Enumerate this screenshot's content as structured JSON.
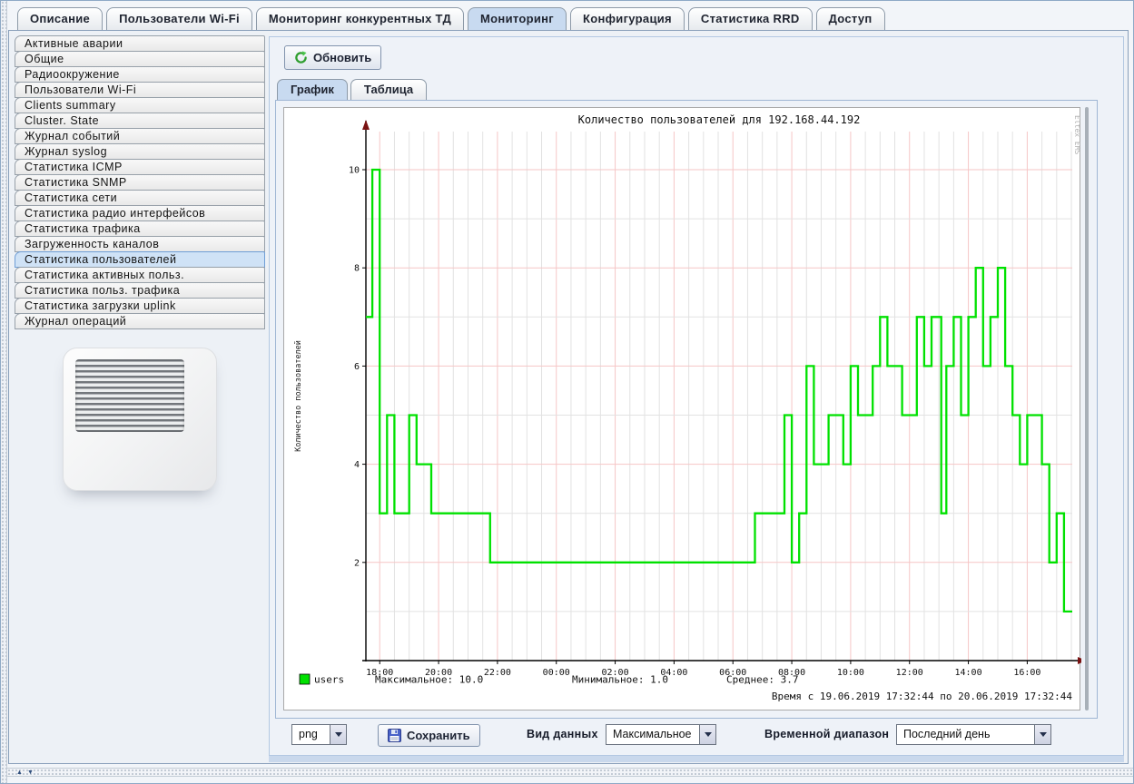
{
  "main_tabs": [
    {
      "label": "Описание",
      "selected": false
    },
    {
      "label": "Пользователи Wi-Fi",
      "selected": false
    },
    {
      "label": "Мониторинг конкурентных ТД",
      "selected": false
    },
    {
      "label": "Мониторинг",
      "selected": true
    },
    {
      "label": "Конфигурация",
      "selected": false
    },
    {
      "label": "Статистика RRD",
      "selected": false
    },
    {
      "label": "Доступ",
      "selected": false
    }
  ],
  "sidebar": {
    "items": [
      {
        "label": "Активные аварии",
        "selected": false
      },
      {
        "label": "Общие",
        "selected": false
      },
      {
        "label": "Радиоокружение",
        "selected": false
      },
      {
        "label": "Пользователи Wi-Fi",
        "selected": false
      },
      {
        "label": "Clients summary",
        "selected": false
      },
      {
        "label": "Cluster. State",
        "selected": false
      },
      {
        "label": "Журнал событий",
        "selected": false
      },
      {
        "label": "Журнал syslog",
        "selected": false
      },
      {
        "label": "Статистика ICMP",
        "selected": false
      },
      {
        "label": "Статистика SNMP",
        "selected": false
      },
      {
        "label": "Статистика сети",
        "selected": false
      },
      {
        "label": "Статистика радио интерфейсов",
        "selected": false
      },
      {
        "label": "Статистика трафика",
        "selected": false
      },
      {
        "label": "Загруженность каналов",
        "selected": false
      },
      {
        "label": "Статистика пользователей",
        "selected": true
      },
      {
        "label": "Статистика активных польз.",
        "selected": false
      },
      {
        "label": "Статистика польз. трафика",
        "selected": false
      },
      {
        "label": "Статистика загрузки uplink",
        "selected": false
      },
      {
        "label": "Журнал операций",
        "selected": false
      }
    ]
  },
  "toolbar": {
    "refresh_label": "Обновить"
  },
  "view_tabs": [
    {
      "label": "График",
      "selected": true
    },
    {
      "label": "Таблица",
      "selected": false
    }
  ],
  "chart_data": {
    "type": "line",
    "subtype": "step",
    "title": "Количество пользователей для 192.168.44.192",
    "ylabel": "Количество пользователей",
    "watermark": "Eltex EMS",
    "series": [
      {
        "name": "users",
        "color": "#00e100",
        "steps_hours_from_start": [
          [
            0,
            7
          ],
          [
            0.22,
            10
          ],
          [
            0.47,
            3
          ],
          [
            0.72,
            5
          ],
          [
            0.97,
            3
          ],
          [
            1.47,
            5
          ],
          [
            1.72,
            4
          ],
          [
            2.22,
            3
          ],
          [
            4.22,
            2
          ],
          [
            13.22,
            3
          ],
          [
            14.22,
            5
          ],
          [
            14.47,
            2
          ],
          [
            14.72,
            3
          ],
          [
            14.97,
            6
          ],
          [
            15.22,
            4
          ],
          [
            15.72,
            5
          ],
          [
            16.22,
            4
          ],
          [
            16.47,
            6
          ],
          [
            16.72,
            5
          ],
          [
            17.22,
            6
          ],
          [
            17.47,
            7
          ],
          [
            17.72,
            6
          ],
          [
            18.22,
            5
          ],
          [
            18.72,
            7
          ],
          [
            18.97,
            6
          ],
          [
            19.22,
            7
          ],
          [
            19.55,
            3
          ],
          [
            19.72,
            6
          ],
          [
            19.97,
            7
          ],
          [
            20.22,
            5
          ],
          [
            20.47,
            7
          ],
          [
            20.72,
            8
          ],
          [
            20.97,
            6
          ],
          [
            21.22,
            7
          ],
          [
            21.47,
            8
          ],
          [
            21.72,
            6
          ],
          [
            21.97,
            5
          ],
          [
            22.22,
            4
          ],
          [
            22.47,
            5
          ],
          [
            22.97,
            4
          ],
          [
            23.22,
            2
          ],
          [
            23.47,
            3
          ],
          [
            23.72,
            1
          ]
        ]
      }
    ],
    "x_start_hours": 0,
    "x_end_hours": 24,
    "x_ticks": [
      {
        "t": 0.47,
        "label": "18:00"
      },
      {
        "t": 2.47,
        "label": "20:00"
      },
      {
        "t": 4.47,
        "label": "22:00"
      },
      {
        "t": 6.47,
        "label": "00:00"
      },
      {
        "t": 8.47,
        "label": "02:00"
      },
      {
        "t": 10.47,
        "label": "04:00"
      },
      {
        "t": 12.47,
        "label": "06:00"
      },
      {
        "t": 14.47,
        "label": "08:00"
      },
      {
        "t": 16.47,
        "label": "10:00"
      },
      {
        "t": 18.47,
        "label": "12:00"
      },
      {
        "t": 20.47,
        "label": "14:00"
      },
      {
        "t": 22.47,
        "label": "16:00"
      }
    ],
    "minor_x_step_hours": 0.5,
    "y_ticks": [
      2,
      4,
      6,
      8,
      10
    ],
    "ylim": [
      0,
      11
    ],
    "grid": {
      "major_color": "#f6c6c6",
      "minor_color": "#e2e2e2",
      "axis_color": "#000000",
      "arrow_color": "#7a1212"
    },
    "legend": {
      "series_label": "users",
      "max_label": "Максимальное:",
      "max_value": "10.0",
      "min_label": "Минимальное:",
      "min_value": "1.0",
      "avg_label": "Среднее:",
      "avg_value": "3.7"
    },
    "time_range_text": "Время с 19.06.2019 17:32:44 по 20.06.2019 17:32:44"
  },
  "footer": {
    "format_value": "png",
    "save_label": "Сохранить",
    "data_view_label": "Вид данных",
    "data_view_value": "Максимальное",
    "time_range_label": "Временной диапазон",
    "time_range_value": "Последний день"
  }
}
